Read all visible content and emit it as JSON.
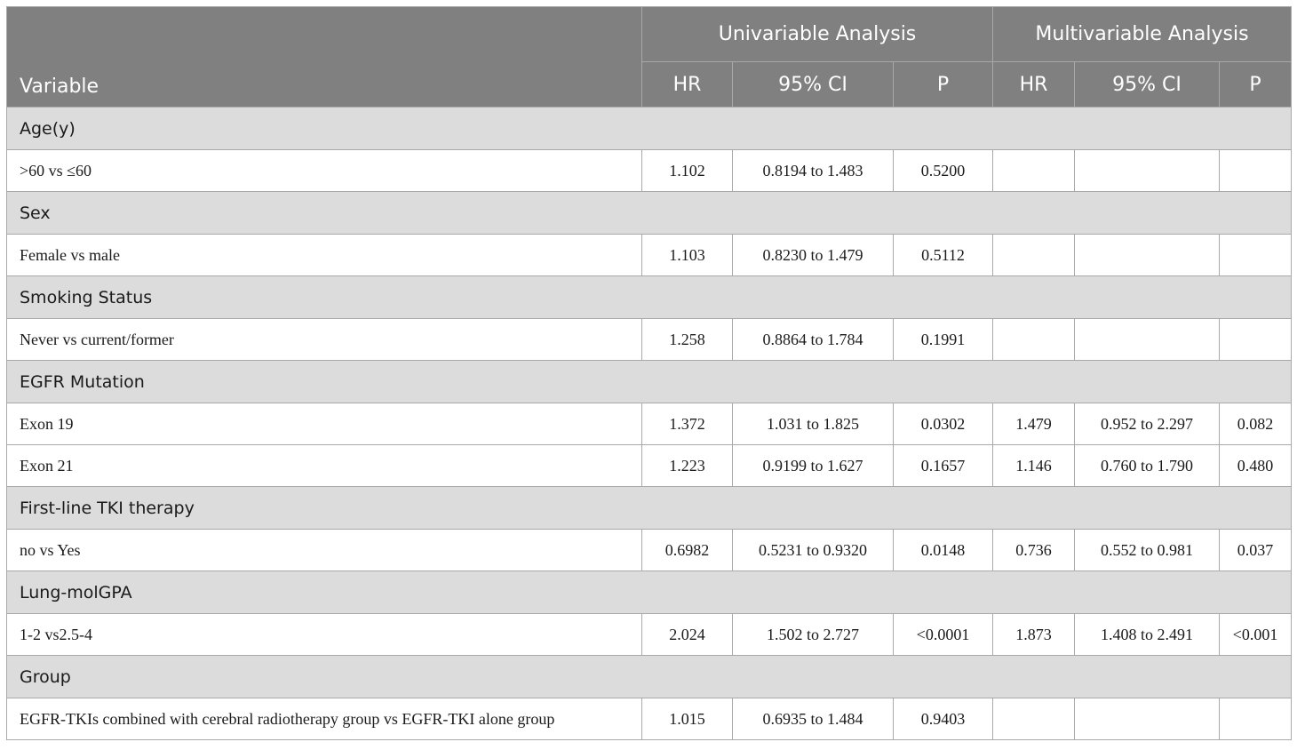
{
  "header": {
    "variable": "Variable",
    "univariable": "Univariable Analysis",
    "multivariable": "Multivariable Analysis",
    "uni_cols": [
      "HR",
      "95% CI",
      "P"
    ],
    "multi_cols": [
      "HR",
      "95% CI",
      "P"
    ]
  },
  "sections": [
    {
      "category": "Age(y)",
      "rows": [
        {
          "label": ">60 vs ≤60",
          "u_hr": "1.102",
          "u_ci": "0.8194 to 1.483",
          "u_p": "0.5200",
          "m_hr": "",
          "m_ci": "",
          "m_p": ""
        }
      ]
    },
    {
      "category": "Sex",
      "rows": [
        {
          "label": "Female vs male",
          "u_hr": "1.103",
          "u_ci": "0.8230 to 1.479",
          "u_p": "0.5112",
          "m_hr": "",
          "m_ci": "",
          "m_p": ""
        }
      ]
    },
    {
      "category": "Smoking Status",
      "rows": [
        {
          "label": "Never vs current/former",
          "u_hr": "1.258",
          "u_ci": "0.8864 to 1.784",
          "u_p": "0.1991",
          "m_hr": "",
          "m_ci": "",
          "m_p": ""
        }
      ]
    },
    {
      "category": "EGFR Mutation",
      "rows": [
        {
          "label": "Exon 19",
          "u_hr": "1.372",
          "u_ci": "1.031 to 1.825",
          "u_p": "0.0302",
          "m_hr": "1.479",
          "m_ci": "0.952 to 2.297",
          "m_p": "0.082"
        },
        {
          "label": "Exon 21",
          "u_hr": "1.223",
          "u_ci": "0.9199 to 1.627",
          "u_p": "0.1657",
          "m_hr": "1.146",
          "m_ci": "0.760 to 1.790",
          "m_p": "0.480"
        }
      ]
    },
    {
      "category": "First-line TKI therapy",
      "rows": [
        {
          "label": "no vs Yes",
          "u_hr": "0.6982",
          "u_ci": "0.5231 to 0.9320",
          "u_p": "0.0148",
          "m_hr": "0.736",
          "m_ci": "0.552 to 0.981",
          "m_p": "0.037"
        }
      ]
    },
    {
      "category": "Lung-molGPA",
      "rows": [
        {
          "label": "1-2 vs2.5-4",
          "u_hr": "2.024",
          "u_ci": "1.502 to 2.727",
          "u_p": "<0.0001",
          "m_hr": "1.873",
          "m_ci": "1.408 to 2.491",
          "m_p": "<0.001"
        }
      ]
    },
    {
      "category": "Group",
      "rows": [
        {
          "label": "EGFR-TKIs combined with cerebral radiotherapy group vs EGFR-TKI alone group",
          "u_hr": "1.015",
          "u_ci": "0.6935 to 1.484",
          "u_p": "0.9403",
          "m_hr": "",
          "m_ci": "",
          "m_p": ""
        }
      ]
    }
  ]
}
